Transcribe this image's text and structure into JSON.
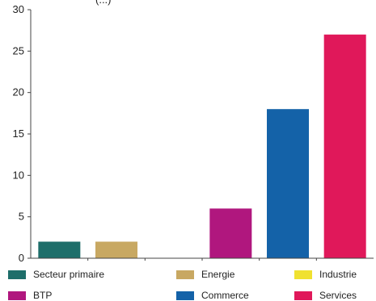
{
  "top_text": "(...)",
  "chart_data": {
    "type": "bar",
    "categories": [
      "Secteur primaire",
      "Energie",
      "Industrie",
      "BTP",
      "Commerce",
      "Services"
    ],
    "values": [
      2,
      2,
      0,
      6,
      18,
      27
    ],
    "colors": [
      "#1e6e6a",
      "#c8a862",
      "#f0e130",
      "#b0177e",
      "#1462a8",
      "#e0185a"
    ],
    "ylim": [
      0,
      30
    ],
    "yticks": [
      "0",
      "5",
      "10",
      "15",
      "20",
      "25",
      "30"
    ],
    "grid": false,
    "legend_position": "bottom"
  },
  "legend": {
    "items": [
      {
        "label": "Secteur primaire",
        "color": "#1e6e6a"
      },
      {
        "label": "Energie",
        "color": "#c8a862"
      },
      {
        "label": "Industrie",
        "color": "#f0e130"
      },
      {
        "label": "BTP",
        "color": "#b0177e"
      },
      {
        "label": "Commerce",
        "color": "#1462a8"
      },
      {
        "label": "Services",
        "color": "#e0185a"
      }
    ]
  }
}
